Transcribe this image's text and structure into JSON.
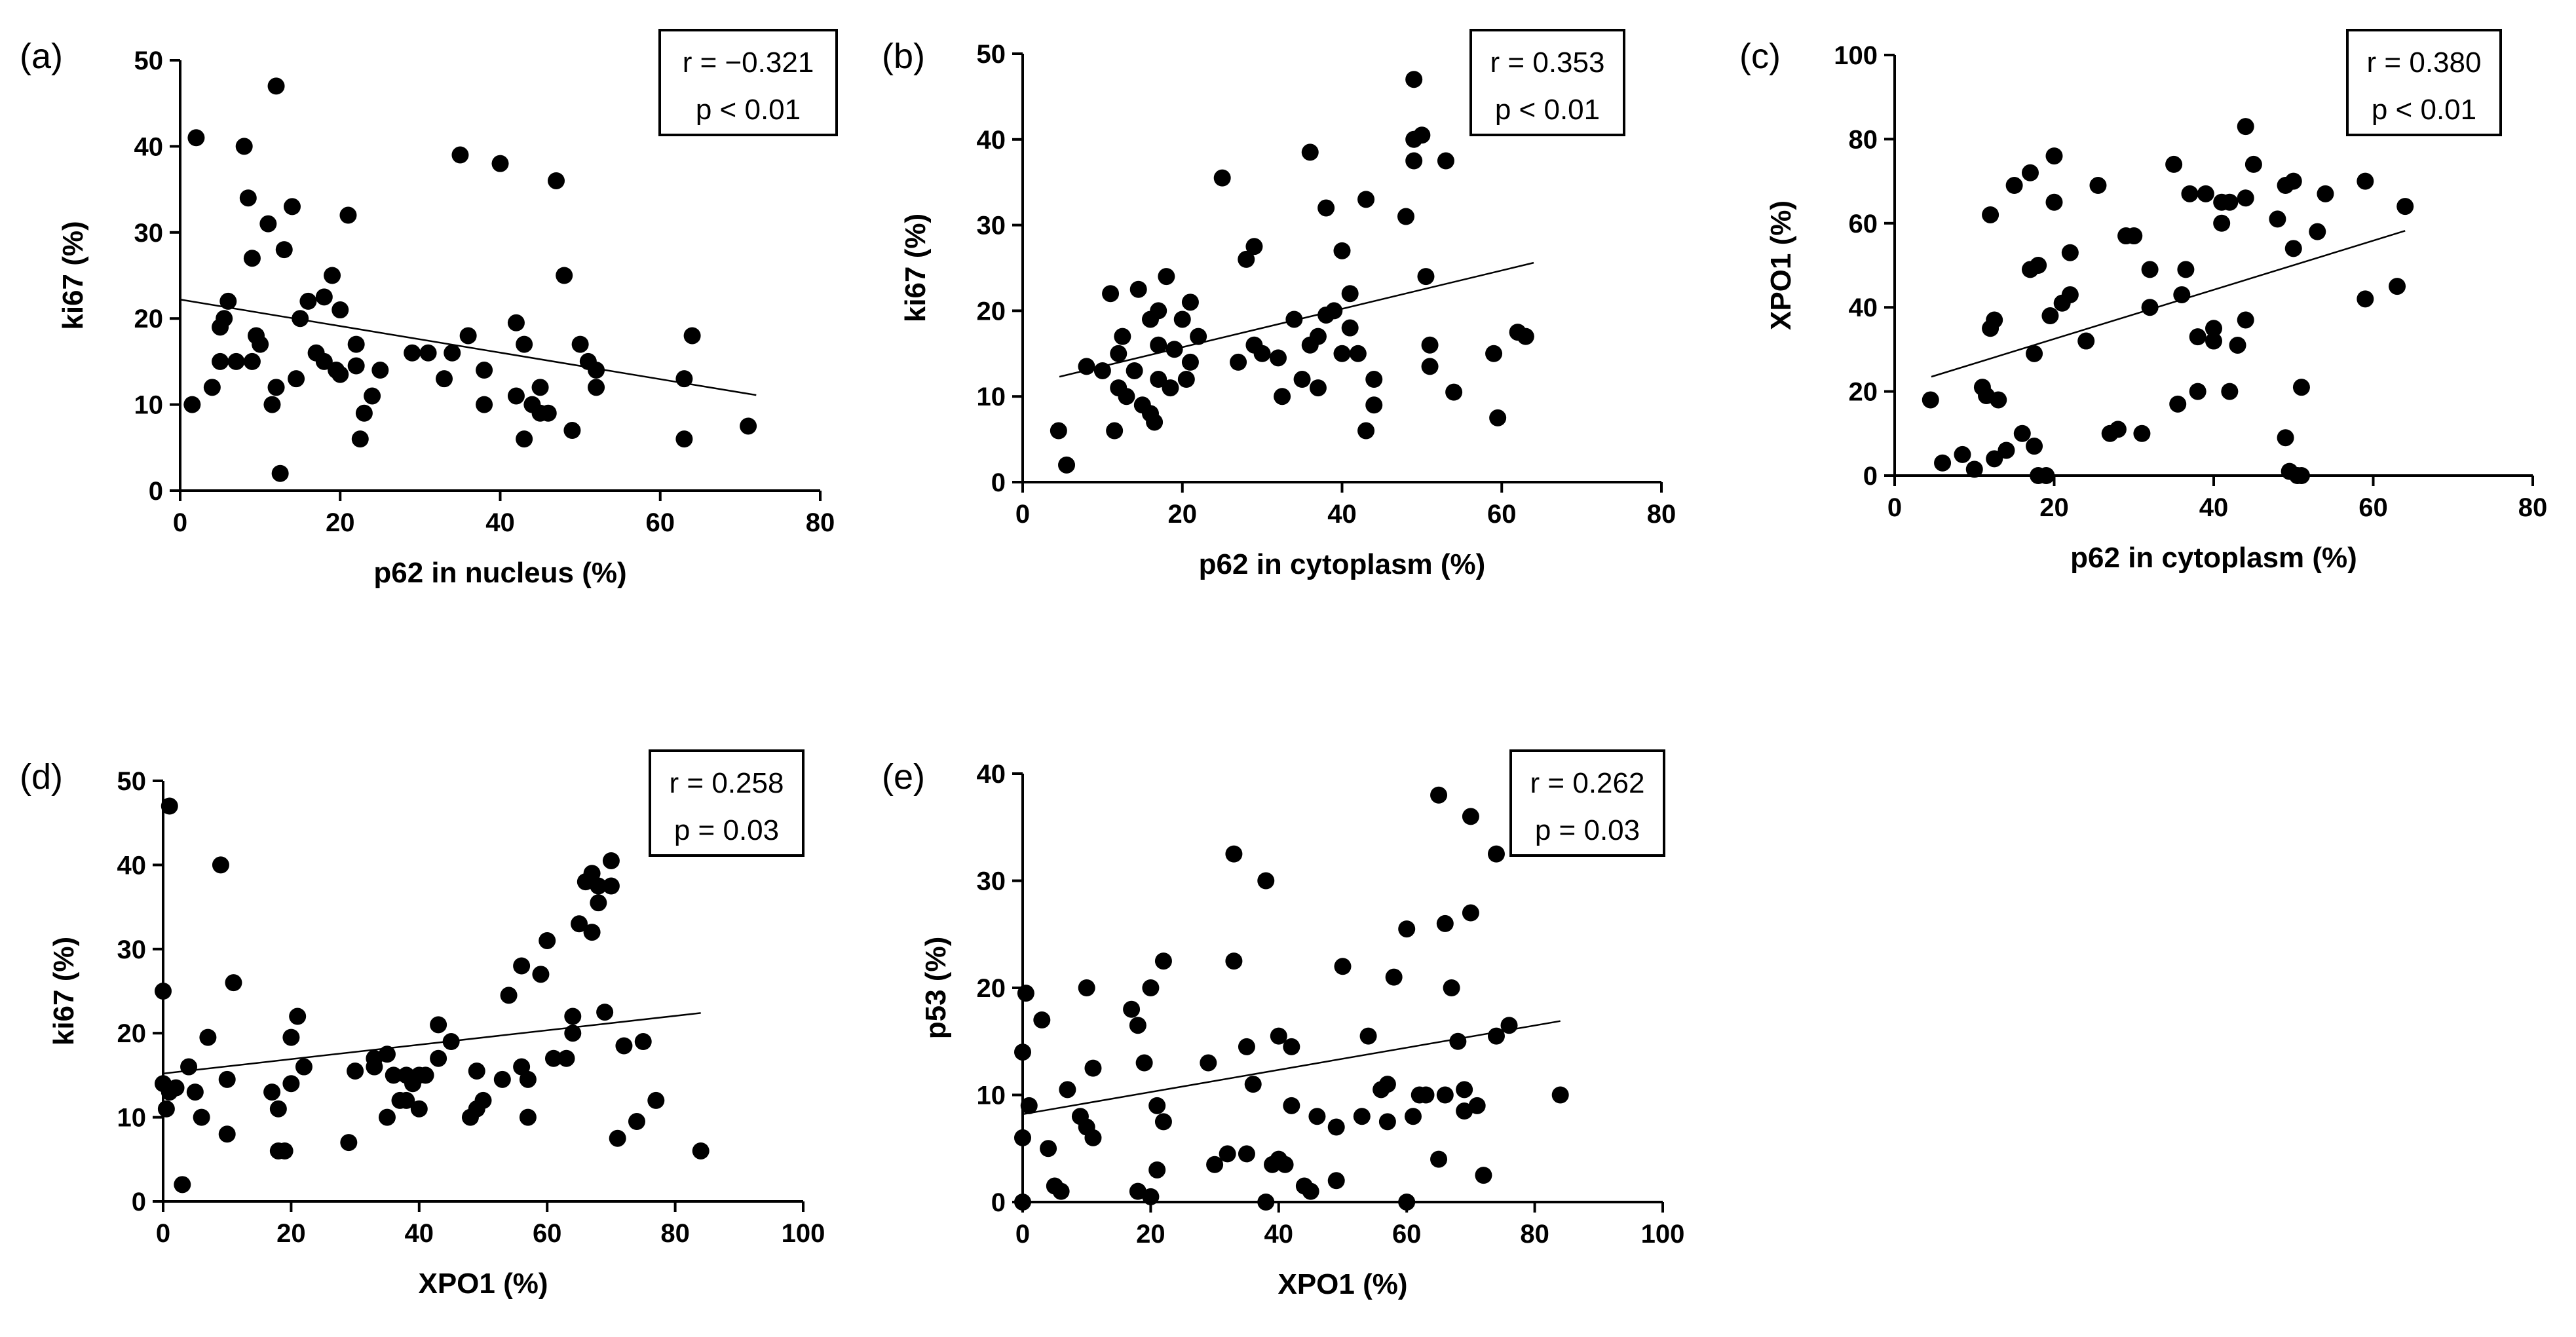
{
  "chart_data": [
    {
      "type": "scatter",
      "panel": "(a)",
      "xlabel": "p62 in nucleus (%)",
      "ylabel": "ki67 (%)",
      "xlim": [
        0,
        80
      ],
      "ylim": [
        0,
        50
      ],
      "xticks": [
        0,
        20,
        40,
        60,
        80
      ],
      "yticks": [
        0,
        10,
        20,
        30,
        40,
        50
      ],
      "stats": [
        "r = −0.321",
        "p <  0.01"
      ],
      "regression": {
        "x": [
          0,
          72
        ],
        "y": [
          22.2,
          11.1
        ]
      },
      "points": [
        [
          2,
          41
        ],
        [
          1.5,
          10
        ],
        [
          4,
          12
        ],
        [
          5,
          15
        ],
        [
          5,
          19
        ],
        [
          5.5,
          20
        ],
        [
          6,
          22
        ],
        [
          7,
          15
        ],
        [
          8,
          40
        ],
        [
          8.5,
          34
        ],
        [
          9,
          15
        ],
        [
          9,
          27
        ],
        [
          9.5,
          18
        ],
        [
          10,
          17
        ],
        [
          11,
          31
        ],
        [
          11.5,
          10
        ],
        [
          12,
          47
        ],
        [
          12,
          12
        ],
        [
          12.5,
          2
        ],
        [
          13,
          28
        ],
        [
          14,
          33
        ],
        [
          14.5,
          13
        ],
        [
          15,
          20
        ],
        [
          16,
          22
        ],
        [
          17,
          16
        ],
        [
          18,
          22.5
        ],
        [
          18,
          15
        ],
        [
          19,
          25
        ],
        [
          19.5,
          14
        ],
        [
          20,
          21
        ],
        [
          20,
          13.5
        ],
        [
          21,
          32
        ],
        [
          22,
          17
        ],
        [
          22,
          14.5
        ],
        [
          23,
          9
        ],
        [
          22.5,
          6
        ],
        [
          24,
          11
        ],
        [
          25,
          14
        ],
        [
          29,
          16
        ],
        [
          31,
          16
        ],
        [
          33,
          13
        ],
        [
          34,
          16
        ],
        [
          35,
          39
        ],
        [
          36,
          18
        ],
        [
          38,
          14
        ],
        [
          38,
          10
        ],
        [
          40,
          38
        ],
        [
          42,
          19.5
        ],
        [
          42,
          11
        ],
        [
          43,
          17
        ],
        [
          43,
          6
        ],
        [
          44,
          10
        ],
        [
          45,
          12
        ],
        [
          45,
          9
        ],
        [
          46,
          9
        ],
        [
          47,
          36
        ],
        [
          48,
          25
        ],
        [
          49,
          7
        ],
        [
          50,
          17
        ],
        [
          51,
          15
        ],
        [
          52,
          14
        ],
        [
          52,
          12
        ],
        [
          63,
          13
        ],
        [
          63,
          6
        ],
        [
          64,
          18
        ],
        [
          71,
          7.5
        ]
      ]
    },
    {
      "type": "scatter",
      "panel": "(b)",
      "xlabel": "p62 in cytoplasm (%)",
      "ylabel": "ki67 (%)",
      "xlim": [
        0,
        80
      ],
      "ylim": [
        0,
        50
      ],
      "xticks": [
        0,
        20,
        40,
        60,
        80
      ],
      "yticks": [
        0,
        10,
        20,
        30,
        40,
        50
      ],
      "stats": [
        "r = 0.353",
        "p < 0.01"
      ],
      "regression": {
        "x": [
          4.6,
          64
        ],
        "y": [
          12.3,
          25.6
        ]
      },
      "points": [
        [
          4.5,
          6
        ],
        [
          5.5,
          2
        ],
        [
          8,
          13.5
        ],
        [
          10,
          13
        ],
        [
          11,
          22
        ],
        [
          11.5,
          6
        ],
        [
          12,
          15
        ],
        [
          12,
          11
        ],
        [
          12.5,
          17
        ],
        [
          13,
          10
        ],
        [
          14,
          13
        ],
        [
          14.5,
          22.5
        ],
        [
          15,
          9
        ],
        [
          16,
          8
        ],
        [
          16,
          19
        ],
        [
          16.5,
          7
        ],
        [
          17,
          20
        ],
        [
          17,
          12
        ],
        [
          17,
          16
        ],
        [
          18,
          24
        ],
        [
          18.5,
          11
        ],
        [
          19,
          15.5
        ],
        [
          20,
          19
        ],
        [
          20.5,
          12
        ],
        [
          21,
          21
        ],
        [
          21,
          14
        ],
        [
          22,
          17
        ],
        [
          25,
          35.5
        ],
        [
          27,
          14
        ],
        [
          28,
          26
        ],
        [
          29,
          27.5
        ],
        [
          29,
          16
        ],
        [
          30,
          15
        ],
        [
          32,
          14.5
        ],
        [
          32.5,
          10
        ],
        [
          34,
          19
        ],
        [
          35,
          12
        ],
        [
          36,
          38.5
        ],
        [
          36,
          16
        ],
        [
          37,
          11
        ],
        [
          37,
          17
        ],
        [
          38,
          19.5
        ],
        [
          38,
          32
        ],
        [
          39,
          20
        ],
        [
          40,
          27
        ],
        [
          40,
          15
        ],
        [
          41,
          18
        ],
        [
          41,
          22
        ],
        [
          42,
          15
        ],
        [
          43,
          33
        ],
        [
          43,
          6
        ],
        [
          44,
          9
        ],
        [
          44,
          12
        ],
        [
          48,
          31
        ],
        [
          49,
          40
        ],
        [
          49,
          37.5
        ],
        [
          49,
          47
        ],
        [
          50,
          40.5
        ],
        [
          50.5,
          24
        ],
        [
          51,
          16
        ],
        [
          51,
          13.5
        ],
        [
          53,
          37.5
        ],
        [
          54,
          10.5
        ],
        [
          59,
          15
        ],
        [
          59.5,
          7.5
        ],
        [
          62,
          17.5
        ],
        [
          63,
          17
        ]
      ]
    },
    {
      "type": "scatter",
      "panel": "(c)",
      "xlabel": "p62 in cytoplasm (%)",
      "ylabel": "XPO1 (%)",
      "xlim": [
        0,
        80
      ],
      "ylim": [
        0,
        100
      ],
      "xticks": [
        0,
        20,
        40,
        60,
        80
      ],
      "yticks": [
        0,
        20,
        40,
        60,
        80,
        100
      ],
      "stats": [
        "r = 0.380",
        "p < 0.01"
      ],
      "regression": {
        "x": [
          4.6,
          64
        ],
        "y": [
          23.5,
          58.2
        ]
      },
      "points": [
        [
          4.5,
          18
        ],
        [
          6,
          3
        ],
        [
          8.5,
          5
        ],
        [
          10,
          1.5
        ],
        [
          11,
          21
        ],
        [
          11.5,
          19
        ],
        [
          12,
          62
        ],
        [
          12,
          35
        ],
        [
          12.5,
          37
        ],
        [
          12.5,
          4
        ],
        [
          13,
          18
        ],
        [
          14,
          6
        ],
        [
          15,
          69
        ],
        [
          16,
          10
        ],
        [
          17,
          72
        ],
        [
          17,
          49
        ],
        [
          17.5,
          29
        ],
        [
          17.5,
          7
        ],
        [
          18,
          50
        ],
        [
          18,
          0
        ],
        [
          19,
          0
        ],
        [
          19.5,
          38
        ],
        [
          20,
          65
        ],
        [
          20,
          76
        ],
        [
          21,
          41
        ],
        [
          22,
          53
        ],
        [
          22,
          43
        ],
        [
          24,
          32
        ],
        [
          25.5,
          69
        ],
        [
          27,
          10
        ],
        [
          28,
          11
        ],
        [
          29,
          57
        ],
        [
          30,
          57
        ],
        [
          31,
          10
        ],
        [
          32,
          49
        ],
        [
          32,
          40
        ],
        [
          35,
          74
        ],
        [
          35.5,
          17
        ],
        [
          36,
          43
        ],
        [
          36.5,
          49
        ],
        [
          37,
          67
        ],
        [
          38,
          20
        ],
        [
          38,
          33
        ],
        [
          39,
          67
        ],
        [
          40,
          32
        ],
        [
          40,
          35
        ],
        [
          41,
          60
        ],
        [
          41,
          65
        ],
        [
          42,
          20
        ],
        [
          42,
          65
        ],
        [
          43,
          31
        ],
        [
          44,
          83
        ],
        [
          44,
          66
        ],
        [
          44,
          37
        ],
        [
          45,
          74
        ],
        [
          48,
          61
        ],
        [
          49,
          69
        ],
        [
          49,
          9
        ],
        [
          49.5,
          1
        ],
        [
          50,
          70
        ],
        [
          50,
          54
        ],
        [
          50.5,
          0
        ],
        [
          51,
          21
        ],
        [
          51,
          0
        ],
        [
          53,
          58
        ],
        [
          54,
          67
        ],
        [
          59,
          70
        ],
        [
          59,
          42
        ],
        [
          63,
          45
        ],
        [
          64,
          64
        ]
      ]
    },
    {
      "type": "scatter",
      "panel": "(d)",
      "xlabel": "XPO1 (%)",
      "ylabel": "ki67 (%)",
      "xlim": [
        0,
        100
      ],
      "ylim": [
        0,
        50
      ],
      "xticks": [
        0,
        20,
        40,
        60,
        80,
        100
      ],
      "yticks": [
        0,
        10,
        20,
        30,
        40,
        50
      ],
      "stats": [
        "r = 0.258",
        "p = 0.03"
      ],
      "regression": {
        "x": [
          0,
          84
        ],
        "y": [
          15.2,
          22.4
        ]
      },
      "points": [
        [
          0,
          25
        ],
        [
          0,
          14
        ],
        [
          0.5,
          11
        ],
        [
          1,
          13
        ],
        [
          1,
          47
        ],
        [
          2,
          13.5
        ],
        [
          3,
          2
        ],
        [
          4,
          16
        ],
        [
          5,
          13
        ],
        [
          6,
          10
        ],
        [
          7,
          19.5
        ],
        [
          9,
          40
        ],
        [
          10,
          14.5
        ],
        [
          10,
          8
        ],
        [
          11,
          26
        ],
        [
          17,
          13
        ],
        [
          18,
          6
        ],
        [
          18,
          11
        ],
        [
          19,
          6
        ],
        [
          20,
          14
        ],
        [
          20,
          19.5
        ],
        [
          21,
          22
        ],
        [
          22,
          16
        ],
        [
          29,
          7
        ],
        [
          30,
          15.5
        ],
        [
          33,
          16
        ],
        [
          33,
          17
        ],
        [
          35,
          10
        ],
        [
          35,
          17.5
        ],
        [
          36,
          15
        ],
        [
          37,
          12
        ],
        [
          38,
          12
        ],
        [
          38,
          15
        ],
        [
          39,
          14
        ],
        [
          40,
          11
        ],
        [
          40,
          15
        ],
        [
          41,
          15
        ],
        [
          43,
          21
        ],
        [
          43,
          17
        ],
        [
          45,
          19
        ],
        [
          48,
          10
        ],
        [
          49,
          15.5
        ],
        [
          49,
          11
        ],
        [
          50,
          12
        ],
        [
          53,
          14.5
        ],
        [
          54,
          24.5
        ],
        [
          56,
          28
        ],
        [
          56,
          16
        ],
        [
          57,
          14.5
        ],
        [
          57,
          10
        ],
        [
          59,
          27
        ],
        [
          60,
          31
        ],
        [
          61,
          17
        ],
        [
          63,
          17
        ],
        [
          64,
          20
        ],
        [
          64,
          22
        ],
        [
          65,
          33
        ],
        [
          66,
          38
        ],
        [
          67,
          32
        ],
        [
          67,
          39
        ],
        [
          68,
          35.5
        ],
        [
          68,
          37.5
        ],
        [
          69,
          22.5
        ],
        [
          70,
          40.5
        ],
        [
          70,
          37.5
        ],
        [
          71,
          7.5
        ],
        [
          72,
          18.5
        ],
        [
          74,
          9.5
        ],
        [
          75,
          19
        ],
        [
          77,
          12
        ],
        [
          84,
          6
        ]
      ]
    },
    {
      "type": "scatter",
      "panel": "(e)",
      "xlabel": "XPO1 (%)",
      "ylabel": "p53 (%)",
      "xlim": [
        0,
        100
      ],
      "ylim": [
        0,
        40
      ],
      "xticks": [
        0,
        20,
        40,
        60,
        80,
        100
      ],
      "yticks": [
        0,
        10,
        20,
        30,
        40
      ],
      "stats": [
        "r = 0.262",
        "p = 0.03"
      ],
      "regression": {
        "x": [
          0,
          84
        ],
        "y": [
          8.2,
          16.9
        ]
      },
      "points": [
        [
          0,
          0
        ],
        [
          0,
          14
        ],
        [
          0,
          6
        ],
        [
          0.5,
          19.5
        ],
        [
          1,
          9
        ],
        [
          3,
          17
        ],
        [
          4,
          5
        ],
        [
          5,
          1.5
        ],
        [
          6,
          1
        ],
        [
          7,
          10.5
        ],
        [
          9,
          8
        ],
        [
          10,
          7
        ],
        [
          10,
          20
        ],
        [
          11,
          6
        ],
        [
          11,
          12.5
        ],
        [
          17,
          18
        ],
        [
          18,
          1
        ],
        [
          18,
          16.5
        ],
        [
          19,
          13
        ],
        [
          20,
          20
        ],
        [
          20,
          0.5
        ],
        [
          21,
          3
        ],
        [
          21,
          9
        ],
        [
          22,
          22.5
        ],
        [
          22,
          7.5
        ],
        [
          29,
          13
        ],
        [
          30,
          3.5
        ],
        [
          32,
          4.5
        ],
        [
          33,
          32.5
        ],
        [
          33,
          22.5
        ],
        [
          35,
          4.5
        ],
        [
          35,
          14.5
        ],
        [
          36,
          11
        ],
        [
          38,
          30
        ],
        [
          38,
          0
        ],
        [
          39,
          3.5
        ],
        [
          40,
          15.5
        ],
        [
          40,
          4
        ],
        [
          41,
          3.5
        ],
        [
          42,
          14.5
        ],
        [
          42,
          9
        ],
        [
          44,
          1.5
        ],
        [
          45,
          1
        ],
        [
          46,
          8
        ],
        [
          49,
          7
        ],
        [
          49,
          2
        ],
        [
          50,
          22
        ],
        [
          53,
          8
        ],
        [
          54,
          15.5
        ],
        [
          56,
          10.5
        ],
        [
          57,
          11
        ],
        [
          57,
          7.5
        ],
        [
          58,
          21
        ],
        [
          60,
          25.5
        ],
        [
          60,
          0
        ],
        [
          61,
          8
        ],
        [
          62,
          10
        ],
        [
          63,
          10
        ],
        [
          65,
          4
        ],
        [
          65,
          38
        ],
        [
          66,
          26
        ],
        [
          66,
          10
        ],
        [
          67,
          20
        ],
        [
          68,
          15
        ],
        [
          69,
          10.5
        ],
        [
          69,
          8.5
        ],
        [
          70,
          36
        ],
        [
          70,
          27
        ],
        [
          71,
          9
        ],
        [
          72,
          2.5
        ],
        [
          74,
          32.5
        ],
        [
          74,
          15.5
        ],
        [
          76,
          16.5
        ],
        [
          84,
          10
        ]
      ]
    }
  ]
}
